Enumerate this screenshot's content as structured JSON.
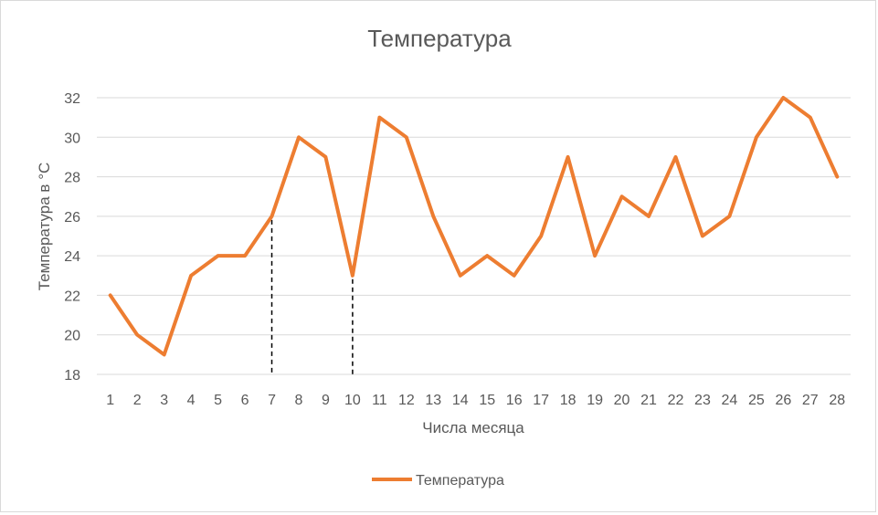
{
  "chart_data": {
    "type": "line",
    "title": "Температура",
    "xlabel": "Числа месяца",
    "ylabel": "Температура в °С",
    "x": [
      1,
      2,
      3,
      4,
      5,
      6,
      7,
      8,
      9,
      10,
      11,
      12,
      13,
      14,
      15,
      16,
      17,
      18,
      19,
      20,
      21,
      22,
      23,
      24,
      25,
      26,
      27,
      28
    ],
    "series": [
      {
        "name": "Температура",
        "color": "#ed7d31",
        "values": [
          22,
          20,
          19,
          23,
          24,
          24,
          26,
          30,
          29,
          23,
          31,
          30,
          26,
          23,
          24,
          23,
          25,
          29,
          24,
          27,
          26,
          29,
          25,
          26,
          30,
          32,
          31,
          28
        ]
      }
    ],
    "ylim": [
      18,
      32
    ],
    "yticks": [
      18,
      20,
      22,
      24,
      26,
      28,
      30,
      32
    ],
    "grid": true,
    "legend": "bottom",
    "annotations": [
      {
        "type": "dashed-drop-line",
        "x": 7,
        "y": 26
      },
      {
        "type": "dashed-drop-line",
        "x": 10,
        "y": 23
      }
    ]
  }
}
